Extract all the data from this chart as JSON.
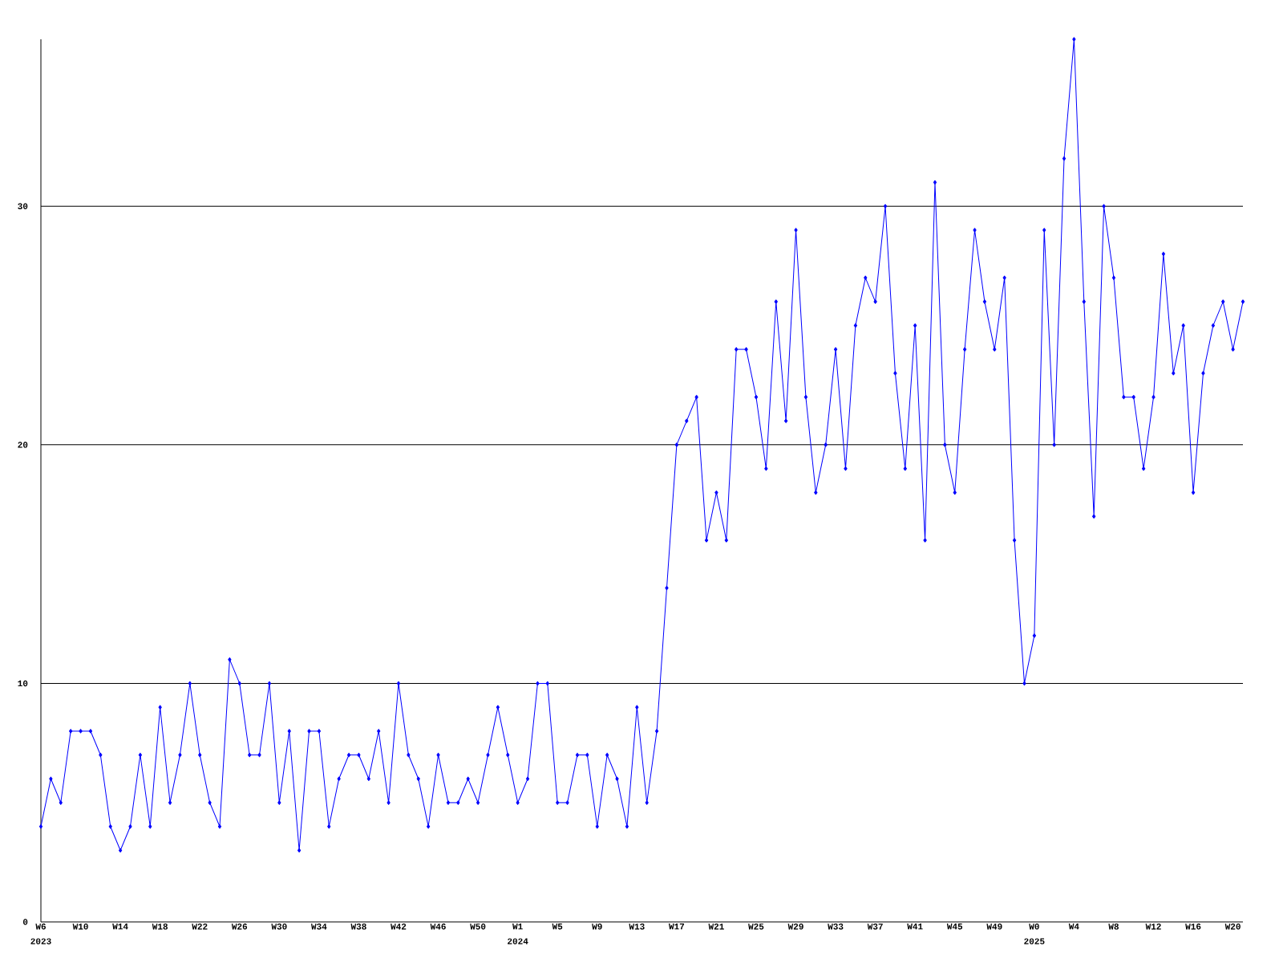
{
  "chart_data": {
    "type": "line",
    "categories": [
      "W6",
      null,
      null,
      null,
      "W10",
      null,
      null,
      null,
      "W14",
      null,
      null,
      null,
      "W18",
      null,
      null,
      null,
      "W22",
      null,
      null,
      null,
      "W26",
      null,
      null,
      null,
      "W30",
      null,
      null,
      null,
      "W34",
      null,
      null,
      null,
      "W38",
      null,
      null,
      null,
      "W42",
      null,
      null,
      null,
      "W46",
      null,
      null,
      null,
      "W50",
      null,
      null,
      null,
      "W1",
      null,
      null,
      null,
      "W5",
      null,
      null,
      null,
      "W9",
      null,
      null,
      null,
      "W13",
      null,
      null,
      null,
      "W17",
      null,
      null,
      null,
      "W21",
      null,
      null,
      null,
      "W25",
      null,
      null,
      null,
      "W29",
      null,
      null,
      null,
      "W33",
      null,
      null,
      null,
      "W37",
      null,
      null,
      null,
      "W41",
      null,
      null,
      null,
      "W45",
      null,
      null,
      null,
      "W49",
      null,
      null,
      null,
      "W0",
      null,
      null,
      null,
      "W4",
      null,
      null,
      null,
      "W8",
      null,
      null,
      null,
      "W12",
      null,
      null,
      null,
      "W16",
      null,
      null,
      null,
      "W20",
      null
    ],
    "values": [
      4,
      6,
      5,
      8,
      8,
      8,
      7,
      4,
      3,
      4,
      7,
      4,
      9,
      5,
      7,
      10,
      7,
      5,
      4,
      11,
      10,
      7,
      7,
      10,
      5,
      8,
      3,
      8,
      8,
      4,
      6,
      7,
      7,
      6,
      8,
      5,
      10,
      7,
      6,
      4,
      7,
      5,
      5,
      6,
      5,
      7,
      9,
      7,
      5,
      6,
      10,
      10,
      5,
      5,
      7,
      7,
      4,
      7,
      6,
      4,
      9,
      5,
      8,
      14,
      20,
      21,
      22,
      16,
      18,
      16,
      24,
      24,
      22,
      19,
      26,
      21,
      29,
      22,
      18,
      20,
      24,
      19,
      25,
      27,
      26,
      30,
      23,
      19,
      25,
      16,
      31,
      20,
      18,
      24,
      29,
      26,
      24,
      27,
      16,
      10,
      12,
      29,
      20,
      32,
      37,
      26,
      17,
      30,
      27,
      22,
      22,
      19,
      22,
      28,
      23,
      25,
      18,
      23,
      25,
      26,
      24,
      26
    ],
    "color": "#0000ff",
    "marker": "diamond",
    "line_style": "solid",
    "ylim": [
      0,
      37
    ],
    "yticks": [
      0,
      10,
      20,
      30
    ],
    "grid": "y",
    "annotations": [
      "2023",
      "2024",
      "2025"
    ]
  }
}
